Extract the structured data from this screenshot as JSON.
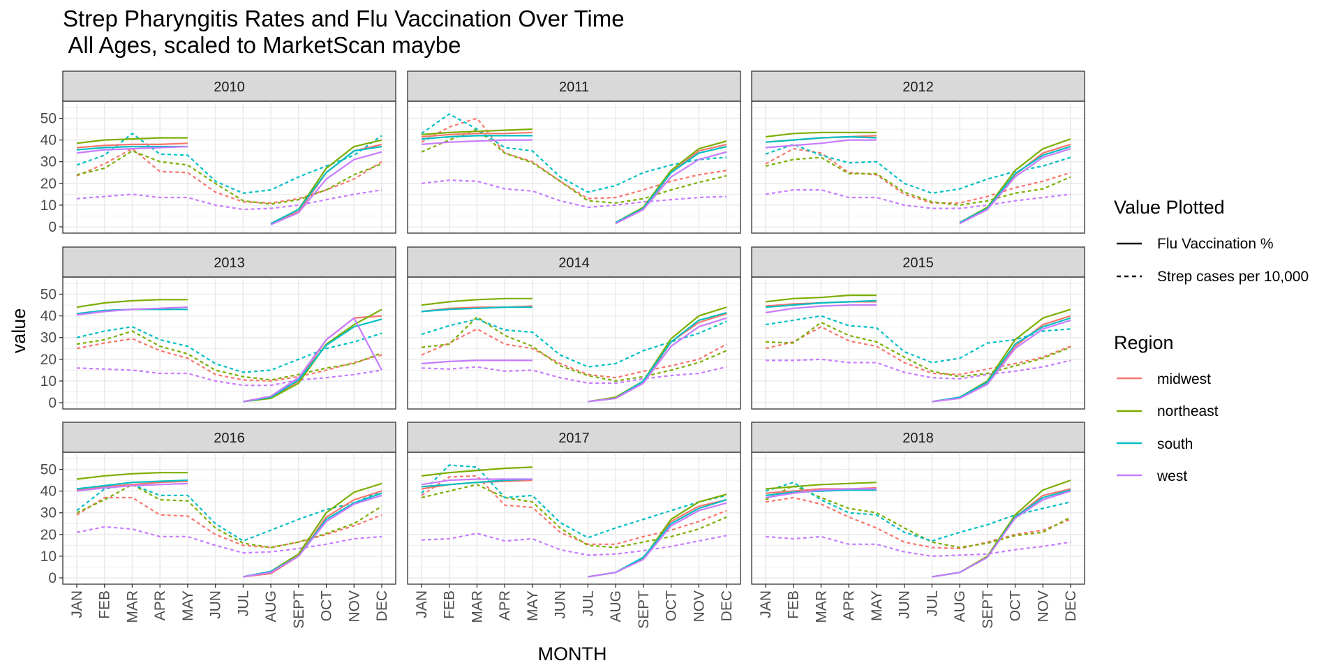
{
  "title_line1": "Strep Pharyngitis Rates and Flu Vaccination Over Time",
  "title_line2": " All Ages, scaled to MarketScan maybe",
  "colors": {
    "midwest": "#F8766D",
    "northeast": "#7CAE00",
    "south": "#00BFC4",
    "west": "#C77CFF",
    "strip_fill": "#D9D9D9",
    "grid": "#EBEBEB",
    "panel_border": "#333333"
  },
  "chart_data": {
    "type": "line",
    "xlabel": "MONTH",
    "ylabel": "value",
    "ylim": [
      0,
      55
    ],
    "yticks": [
      0,
      10,
      20,
      30,
      40,
      50
    ],
    "grid": true,
    "legend_position": "right",
    "months": [
      "JAN",
      "FEB",
      "MAR",
      "APR",
      "MAY",
      "JUN",
      "JUL",
      "AUG",
      "SEPT",
      "OCT",
      "NOV",
      "DEC"
    ],
    "linetype_legend": {
      "title": "Value Plotted",
      "entries": [
        {
          "label": "Flu Vaccination %",
          "dash": "solid"
        },
        {
          "label": "Strep cases per 10,000",
          "dash": "dashed"
        }
      ]
    },
    "color_legend": {
      "title": "Region",
      "entries": [
        "midwest",
        "northeast",
        "south",
        "west"
      ]
    },
    "regions": [
      "midwest",
      "northeast",
      "south",
      "west"
    ],
    "facets": [
      {
        "year": "2010",
        "vacc": {
          "midwest": [
            36.5,
            37.5,
            38,
            38,
            38.5,
            null,
            null,
            1.5,
            7,
            25,
            35,
            38
          ],
          "northeast": [
            38.5,
            40,
            40.5,
            41,
            41,
            null,
            null,
            1.5,
            8,
            27,
            37,
            40
          ],
          "south": [
            35.5,
            36.5,
            37,
            37,
            37,
            null,
            null,
            1.5,
            8,
            25,
            35,
            37
          ],
          "west": [
            34,
            35.5,
            36,
            36.5,
            37,
            null,
            null,
            1,
            6.5,
            22,
            31,
            34.5
          ]
        },
        "strep": {
          "midwest": [
            23.5,
            29,
            36,
            25.5,
            25,
            16,
            11.5,
            11,
            13,
            17,
            22,
            30
          ],
          "northeast": [
            24,
            27,
            35,
            30,
            28.5,
            20,
            12,
            10.5,
            12.5,
            17,
            24,
            29
          ],
          "south": [
            28.5,
            33,
            43,
            33.5,
            33,
            21,
            15.5,
            17,
            23,
            28,
            33,
            42
          ],
          "west": [
            13,
            14,
            15,
            13.5,
            13.5,
            10,
            8,
            8.5,
            10,
            12.5,
            15,
            17
          ]
        }
      },
      {
        "year": "2011",
        "vacc": {
          "midwest": [
            41.5,
            42.5,
            43,
            43,
            43.5,
            null,
            null,
            1.5,
            8,
            25,
            35,
            38
          ],
          "northeast": [
            42.5,
            43.5,
            44,
            44.5,
            45,
            null,
            null,
            2,
            9,
            26,
            36,
            39.5
          ],
          "south": [
            40.5,
            41.5,
            42,
            42,
            42,
            null,
            null,
            2,
            8.5,
            25,
            34,
            37
          ],
          "west": [
            38,
            39,
            39.5,
            40,
            40,
            null,
            null,
            1.5,
            8,
            23,
            31,
            34.5
          ]
        },
        "strep": {
          "midwest": [
            39,
            46,
            50,
            34,
            30,
            21,
            13,
            13.5,
            17,
            21,
            24,
            26
          ],
          "northeast": [
            34.5,
            40,
            45,
            34,
            29.5,
            21,
            12,
            11,
            13,
            17,
            20.5,
            23.5
          ],
          "south": [
            43,
            52,
            45,
            36.5,
            35,
            23,
            16,
            19,
            25,
            28.5,
            31,
            32
          ],
          "west": [
            20,
            21.5,
            21,
            17.5,
            16.5,
            12,
            9,
            10,
            11.5,
            12.5,
            13.5,
            14
          ]
        }
      },
      {
        "year": "2012",
        "vacc": {
          "midwest": [
            39,
            40,
            41,
            41.5,
            42,
            null,
            null,
            1.5,
            8,
            24,
            34,
            38
          ],
          "northeast": [
            41.5,
            43,
            43.5,
            43.5,
            43.5,
            null,
            null,
            2,
            9,
            26,
            36,
            40.5
          ],
          "south": [
            39,
            40,
            41,
            41.5,
            41,
            null,
            null,
            2,
            8.5,
            24.5,
            33,
            37
          ],
          "west": [
            36.5,
            37.5,
            38.5,
            40,
            40,
            null,
            null,
            1.5,
            8,
            23,
            32,
            36
          ]
        },
        "strep": {
          "midwest": [
            29,
            36,
            34,
            25,
            24,
            15,
            11,
            11,
            14,
            18,
            21,
            25
          ],
          "northeast": [
            28,
            31,
            32,
            24.5,
            24.5,
            16,
            11.5,
            10,
            12,
            15.5,
            17.5,
            23
          ],
          "south": [
            33.5,
            38,
            33,
            29.5,
            30,
            20,
            15.5,
            17.5,
            22,
            25.5,
            28,
            32
          ],
          "west": [
            15,
            17,
            17,
            13.5,
            13.5,
            10,
            8.5,
            8.5,
            10,
            12,
            13.5,
            15
          ]
        }
      },
      {
        "year": "2013",
        "vacc": {
          "midwest": [
            41,
            42.5,
            43,
            43.5,
            44,
            null,
            0.5,
            2.5,
            10,
            29,
            39,
            40
          ],
          "northeast": [
            44,
            46,
            47,
            47.5,
            47.5,
            null,
            0.5,
            2,
            9,
            27,
            36,
            43
          ],
          "south": [
            41,
            42.5,
            43,
            43,
            43,
            null,
            0.5,
            2.5,
            10.5,
            26.5,
            35,
            38.5
          ],
          "west": [
            40.5,
            42,
            43,
            43.5,
            44,
            null,
            0.5,
            3,
            11.5,
            29,
            39,
            15
          ]
        },
        "strep": {
          "midwest": [
            25,
            27.5,
            29.5,
            24,
            20.5,
            13,
            10.5,
            10,
            12,
            15,
            18.5,
            22
          ],
          "northeast": [
            27,
            29,
            33,
            26,
            22.5,
            15,
            12,
            10.5,
            13,
            16,
            18,
            23
          ],
          "south": [
            30,
            33,
            35,
            29,
            26,
            18,
            14,
            15,
            20,
            25,
            28,
            32
          ],
          "west": [
            16,
            15.5,
            15,
            13.5,
            13.5,
            10,
            8,
            8,
            10.5,
            11.5,
            13,
            15
          ]
        }
      },
      {
        "year": "2014",
        "vacc": {
          "midwest": [
            42,
            43.5,
            44,
            44,
            44.5,
            null,
            0.5,
            2,
            9,
            28,
            37,
            41
          ],
          "northeast": [
            45,
            46.5,
            47.5,
            48,
            48,
            null,
            0.5,
            2.5,
            10,
            29.5,
            40,
            44
          ],
          "south": [
            42,
            43,
            43.5,
            44,
            44,
            null,
            0.5,
            2,
            10,
            28,
            38,
            41.5
          ],
          "west": [
            18,
            19,
            19.5,
            19.5,
            19.5,
            null,
            0.5,
            2,
            9,
            26,
            35,
            39
          ]
        },
        "strep": {
          "midwest": [
            22,
            27.5,
            34,
            27,
            25,
            18,
            13,
            11.5,
            14.5,
            17,
            20,
            27
          ],
          "northeast": [
            25.5,
            27,
            39.5,
            31,
            26,
            17,
            12.5,
            10,
            12,
            15,
            18.5,
            24
          ],
          "south": [
            31.5,
            35.5,
            38.5,
            33.5,
            32.5,
            22,
            16.5,
            18,
            24,
            28,
            32,
            37.5
          ],
          "west": [
            16,
            15.5,
            16.5,
            14.5,
            15,
            11.5,
            9,
            9,
            11,
            12.5,
            13.5,
            16.5
          ]
        }
      },
      {
        "year": "2015",
        "vacc": {
          "midwest": [
            44.5,
            45.5,
            46,
            46.5,
            46.5,
            null,
            0.5,
            2,
            9,
            26,
            36,
            40
          ],
          "northeast": [
            46.5,
            48,
            48.5,
            49.5,
            49.5,
            null,
            0.5,
            2.5,
            10,
            29,
            39,
            43
          ],
          "south": [
            44,
            45,
            46,
            46.5,
            47,
            null,
            0.5,
            2.5,
            9.5,
            27,
            35,
            39
          ],
          "west": [
            41.5,
            43.5,
            44.5,
            45,
            45,
            null,
            0.5,
            2,
            8.5,
            25,
            34,
            38
          ]
        },
        "strep": {
          "midwest": [
            25,
            28,
            35,
            28.5,
            26,
            18.5,
            13.5,
            13,
            15.5,
            18,
            21,
            26
          ],
          "northeast": [
            28,
            27.5,
            37,
            31,
            28,
            21,
            14.5,
            12,
            13.5,
            17,
            20.5,
            25.5
          ],
          "south": [
            36,
            38,
            40,
            35.5,
            34.5,
            23.5,
            18.5,
            20.5,
            27.5,
            29,
            33,
            34
          ],
          "west": [
            19.5,
            19.5,
            20,
            18.5,
            18.5,
            14,
            11.5,
            11,
            13,
            14.5,
            16.5,
            19.5
          ]
        }
      },
      {
        "year": "2016",
        "vacc": {
          "midwest": [
            40.5,
            42,
            43,
            44,
            44.5,
            null,
            0.5,
            2,
            10,
            28,
            36,
            40
          ],
          "northeast": [
            45.5,
            47,
            48,
            48.5,
            48.5,
            null,
            0.5,
            3,
            11,
            30,
            39.5,
            43.5
          ],
          "south": [
            41,
            42.5,
            44,
            44.5,
            45,
            null,
            0.5,
            3,
            10,
            27,
            34.5,
            39
          ],
          "west": [
            40,
            41.5,
            42.5,
            43,
            43.5,
            null,
            0.5,
            2.5,
            10,
            26,
            34,
            38
          ]
        },
        "strep": {
          "midwest": [
            29,
            37,
            37,
            29,
            28.5,
            20,
            15,
            14,
            16.5,
            20,
            24,
            29
          ],
          "northeast": [
            30,
            36,
            43,
            36,
            35.5,
            23,
            16,
            14,
            16.5,
            20.5,
            25,
            33
          ],
          "south": [
            31,
            41,
            43,
            38,
            38,
            25,
            17,
            22,
            27,
            31.5,
            34.5,
            40
          ],
          "west": [
            21,
            23.5,
            22.5,
            19,
            19,
            15,
            11.5,
            12,
            13.5,
            15.5,
            18,
            19
          ]
        }
      },
      {
        "year": "2017",
        "vacc": {
          "midwest": [
            41,
            43,
            44,
            44.5,
            45,
            null,
            0.5,
            2.5,
            9,
            26,
            33,
            36
          ],
          "northeast": [
            47,
            48.5,
            49.5,
            50.5,
            51,
            null,
            0.5,
            2.5,
            9,
            27,
            35,
            38.5
          ],
          "south": [
            42,
            43,
            44,
            45,
            45.5,
            null,
            0.5,
            2.5,
            9.5,
            25,
            32,
            36
          ],
          "west": [
            43,
            45,
            45.5,
            45.5,
            45.5,
            null,
            0.5,
            2.5,
            8.5,
            24,
            31,
            34.5
          ]
        },
        "strep": {
          "midwest": [
            38,
            46.5,
            47,
            33.5,
            32.5,
            21,
            15.5,
            15.5,
            19,
            22,
            26,
            31
          ],
          "northeast": [
            37,
            40,
            43,
            37,
            35,
            23,
            15,
            14,
            16.5,
            19,
            22.5,
            28
          ],
          "south": [
            39,
            52,
            51,
            37,
            38,
            25.5,
            18.5,
            23,
            27,
            31,
            35,
            38
          ],
          "west": [
            17.5,
            18,
            20.5,
            17,
            18,
            13,
            10.5,
            11,
            12.5,
            14.5,
            17,
            19.5
          ]
        }
      },
      {
        "year": "2018",
        "vacc": {
          "midwest": [
            39,
            40,
            41,
            41,
            41.5,
            null,
            0.5,
            2.5,
            9.5,
            28,
            38,
            41
          ],
          "northeast": [
            41,
            42,
            43,
            43.5,
            44,
            null,
            0.5,
            2.5,
            10,
            29,
            40.5,
            45
          ],
          "south": [
            38,
            39.5,
            40,
            40.5,
            40.5,
            null,
            0.5,
            2.5,
            9.5,
            28,
            37,
            40.5
          ],
          "west": [
            37,
            39,
            40.5,
            41,
            41,
            null,
            0.5,
            2.5,
            9.5,
            27.5,
            36,
            40
          ]
        },
        "strep": {
          "midwest": [
            35,
            37,
            34,
            28,
            23,
            16.5,
            14,
            13.5,
            16.5,
            20,
            22,
            27
          ],
          "northeast": [
            36,
            42.5,
            37,
            32,
            30,
            23,
            16.5,
            14,
            16,
            19.5,
            21,
            28
          ],
          "south": [
            40,
            44,
            36,
            30,
            29,
            21,
            17,
            21,
            24.5,
            29,
            32,
            35
          ],
          "west": [
            19,
            18,
            19,
            15.5,
            15.5,
            12,
            10,
            10.5,
            11,
            13,
            14.5,
            16.5
          ]
        }
      }
    ]
  }
}
